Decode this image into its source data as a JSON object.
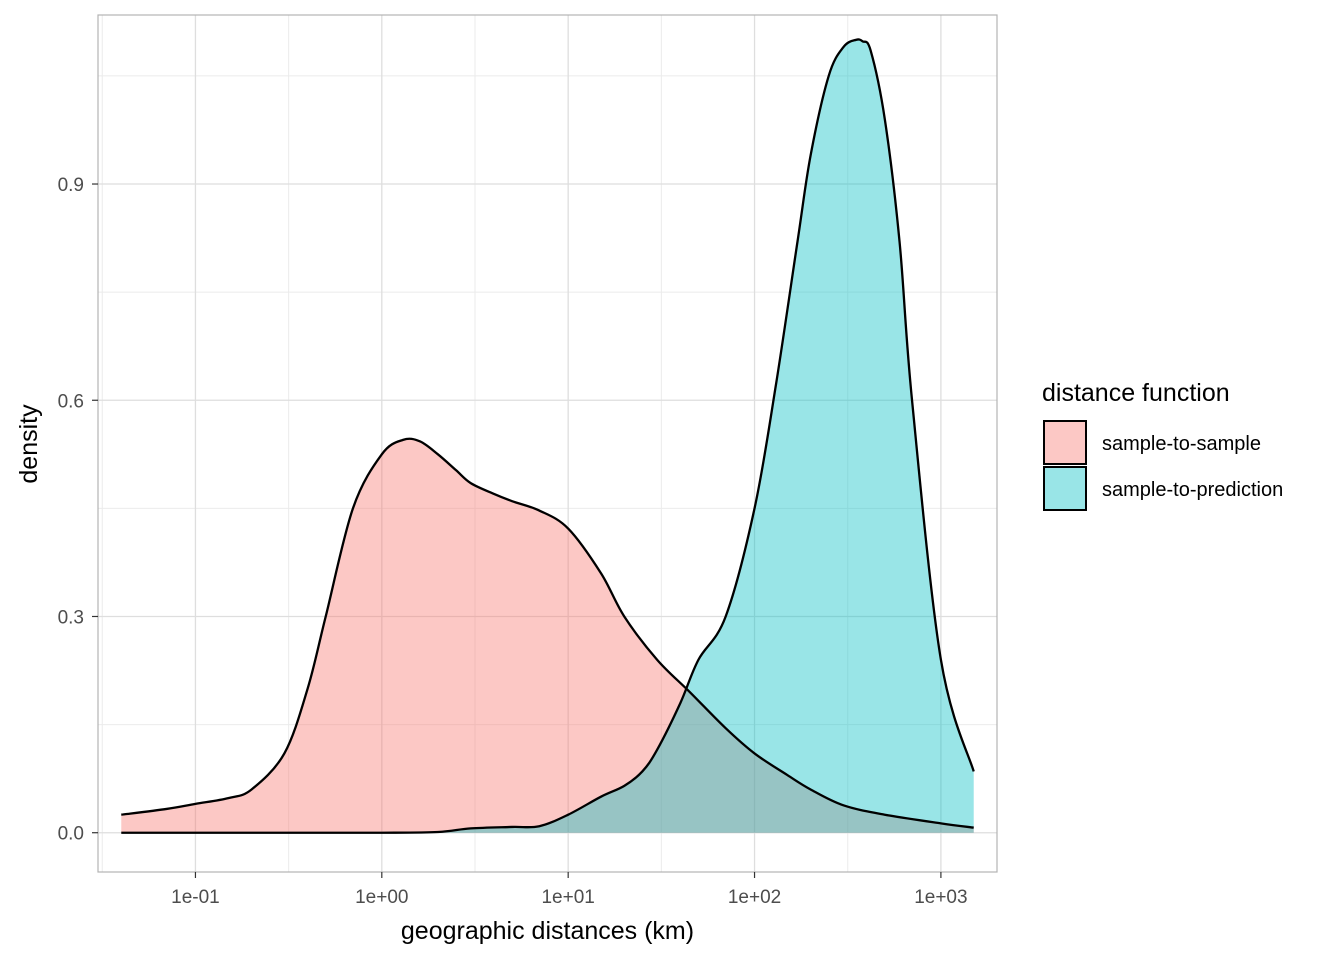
{
  "chart_data": {
    "type": "area",
    "title": "",
    "xlabel": "geographic distances (km)",
    "ylabel": "density",
    "x_scale": "log10",
    "xlim": [
      0.03,
      2000
    ],
    "ylim": [
      -0.0545,
      1.1345
    ],
    "x_ticks": [
      0.1,
      1,
      10,
      100,
      1000
    ],
    "x_tick_labels": [
      "1e-01",
      "1e+00",
      "1e+01",
      "1e+02",
      "1e+03"
    ],
    "y_ticks": [
      0.0,
      0.3,
      0.6,
      0.9
    ],
    "y_tick_labels": [
      "0.0",
      "0.3",
      "0.6",
      "0.9"
    ],
    "grid": true,
    "legend": {
      "title": "distance function",
      "position": "right",
      "entries": [
        "sample-to-sample",
        "sample-to-prediction"
      ]
    },
    "colors": {
      "sample-to-sample": "#F8766D",
      "sample-to-prediction": "#00BFC4",
      "fill_opacity": 0.4
    },
    "series": [
      {
        "name": "sample-to-sample",
        "x": [
          0.04,
          0.07,
          0.1,
          0.15,
          0.2,
          0.3,
          0.4,
          0.5,
          0.7,
          1.0,
          1.3,
          1.6,
          2.0,
          2.5,
          3.0,
          4.0,
          5.0,
          7.0,
          10,
          15,
          20,
          30,
          45,
          70,
          100,
          150,
          200,
          300,
          500,
          1000,
          1500
        ],
        "y": [
          0.025,
          0.033,
          0.04,
          0.048,
          0.06,
          0.11,
          0.2,
          0.3,
          0.45,
          0.525,
          0.545,
          0.543,
          0.525,
          0.503,
          0.485,
          0.47,
          0.46,
          0.447,
          0.422,
          0.36,
          0.3,
          0.24,
          0.195,
          0.145,
          0.11,
          0.08,
          0.06,
          0.038,
          0.025,
          0.013,
          0.007
        ]
      },
      {
        "name": "sample-to-prediction",
        "x": [
          0.04,
          0.5,
          1.0,
          2.0,
          3.0,
          5.0,
          7.0,
          10,
          15,
          20,
          25,
          30,
          40,
          50,
          70,
          100,
          130,
          170,
          200,
          250,
          300,
          350,
          380,
          420,
          500,
          600,
          700,
          1000,
          1500
        ],
        "y": [
          0.0,
          0.0,
          0.0,
          0.001,
          0.006,
          0.008,
          0.009,
          0.025,
          0.05,
          0.065,
          0.085,
          0.115,
          0.18,
          0.24,
          0.3,
          0.45,
          0.62,
          0.82,
          0.94,
          1.05,
          1.09,
          1.1,
          1.098,
          1.085,
          0.99,
          0.82,
          0.6,
          0.24,
          0.085
        ]
      }
    ]
  }
}
